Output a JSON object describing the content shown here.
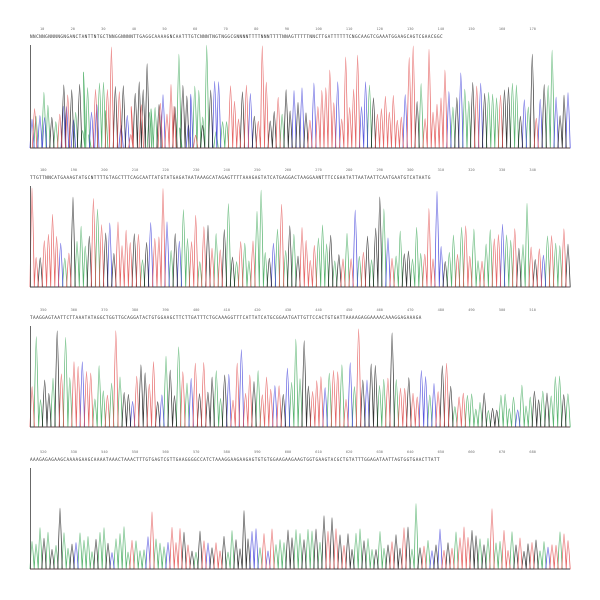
{
  "chart_data": {
    "type": "line",
    "description_visible": "",
    "channel_colors": {
      "A": "#3aa655",
      "C": "#3a3ad8",
      "G": "#111111",
      "T": "#e04a4a"
    },
    "panels": [
      {
        "sequence": "NNCNNGNNNNGNGANCTANTTNTGCTNNGGNNNNTTGAGGCAAAAGNCAATTTGTCNNNTNGTNGGCGNNNNTTTTNNNTTTTNNAGTTTTTNNCTTGATTTTTTCNGCAAGTCGAAATGGAAGCAGTCGAACGGC",
        "positions": [
          "10",
          "20",
          "30",
          "40",
          "50",
          "60",
          "70",
          "80",
          "90",
          "100",
          "110",
          "120",
          "130",
          "140",
          "150",
          "160",
          "170"
        ]
      },
      {
        "sequence": "TTGTTNNCATGAAAGTATGCNTTTTGTAGCTTTCAGCAATTATGTATGAGATAATAAAGCATAGAGTTTTAAAGAGTATCATGAGGACTAAGGAANTTTCCGAATATTAATAATTCAATGAATGTCATAATG",
        "positions": [
          "180",
          "190",
          "200",
          "210",
          "220",
          "230",
          "240",
          "250",
          "260",
          "270",
          "280",
          "290",
          "300",
          "310",
          "320",
          "330",
          "340"
        ]
      },
      {
        "sequence": "TAAGGAGTAATTCTTAAATATAGGCTGGTTGCAGGATACTGTGGAAGCTTCTTGATTTCTGCAAAGGTTTCATTATCATGCGGAATGATTGTTCCACTGTGATTAAAAGAGGAAAACAAAGGAGAAAGA",
        "positions": [
          "350",
          "360",
          "370",
          "380",
          "390",
          "400",
          "410",
          "420",
          "430",
          "440",
          "450",
          "460",
          "470",
          "480",
          "490",
          "500",
          "510"
        ]
      },
      {
        "sequence": "AAAGAGAGAAGCAAAAGAAGCAAAATAAACTAAACTTTGTGAGTCGTTGAAGGGGCCATCTAAAGGAAGAAGAGTGTGTGGAAGAAGAAGTGGTGAAGTACGCTGTATTTGGAGATAATTAGTGGTGAACTTATT",
        "positions": [
          "520",
          "530",
          "540",
          "550",
          "560",
          "570",
          "580",
          "590",
          "600",
          "610",
          "620",
          "630",
          "640",
          "650",
          "660",
          "670",
          "680"
        ]
      }
    ]
  }
}
